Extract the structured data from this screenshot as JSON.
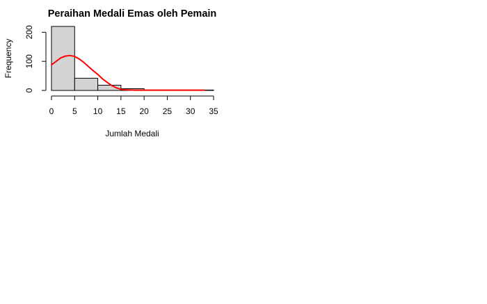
{
  "chart_data": {
    "type": "bar",
    "title": "Peraihan Medali Emas oleh Pemain",
    "xlabel": "Jumlah Medali",
    "ylabel": "Frequency",
    "bins": [
      {
        "from": 0,
        "to": 5,
        "count": 220
      },
      {
        "from": 5,
        "to": 10,
        "count": 42
      },
      {
        "from": 10,
        "to": 15,
        "count": 18
      },
      {
        "from": 15,
        "to": 20,
        "count": 6
      },
      {
        "from": 20,
        "to": 25,
        "count": 1
      },
      {
        "from": 25,
        "to": 30,
        "count": 1
      },
      {
        "from": 30,
        "to": 35,
        "count": 1
      }
    ],
    "xlim": [
      0,
      35
    ],
    "ylim": [
      0,
      220
    ],
    "xticks": [
      "0",
      "5",
      "10",
      "15",
      "20",
      "25",
      "30",
      "35"
    ],
    "yticks": [
      "0",
      "100",
      "200"
    ],
    "density_curve": {
      "color": "#ff0000",
      "points": [
        [
          0,
          88
        ],
        [
          1,
          100
        ],
        [
          2,
          112
        ],
        [
          3,
          118
        ],
        [
          4,
          120
        ],
        [
          5,
          117
        ],
        [
          6,
          108
        ],
        [
          7,
          96
        ],
        [
          8,
          82
        ],
        [
          9,
          68
        ],
        [
          10,
          55
        ],
        [
          11,
          40
        ],
        [
          12,
          28
        ],
        [
          13,
          17
        ],
        [
          14,
          9
        ],
        [
          15,
          4
        ],
        [
          16,
          2
        ],
        [
          18,
          1
        ],
        [
          20,
          1
        ],
        [
          25,
          1
        ],
        [
          30,
          1
        ],
        [
          33,
          1
        ]
      ]
    },
    "bar_fill": "#d3d3d3",
    "bar_stroke": "#000000",
    "grid": false
  }
}
